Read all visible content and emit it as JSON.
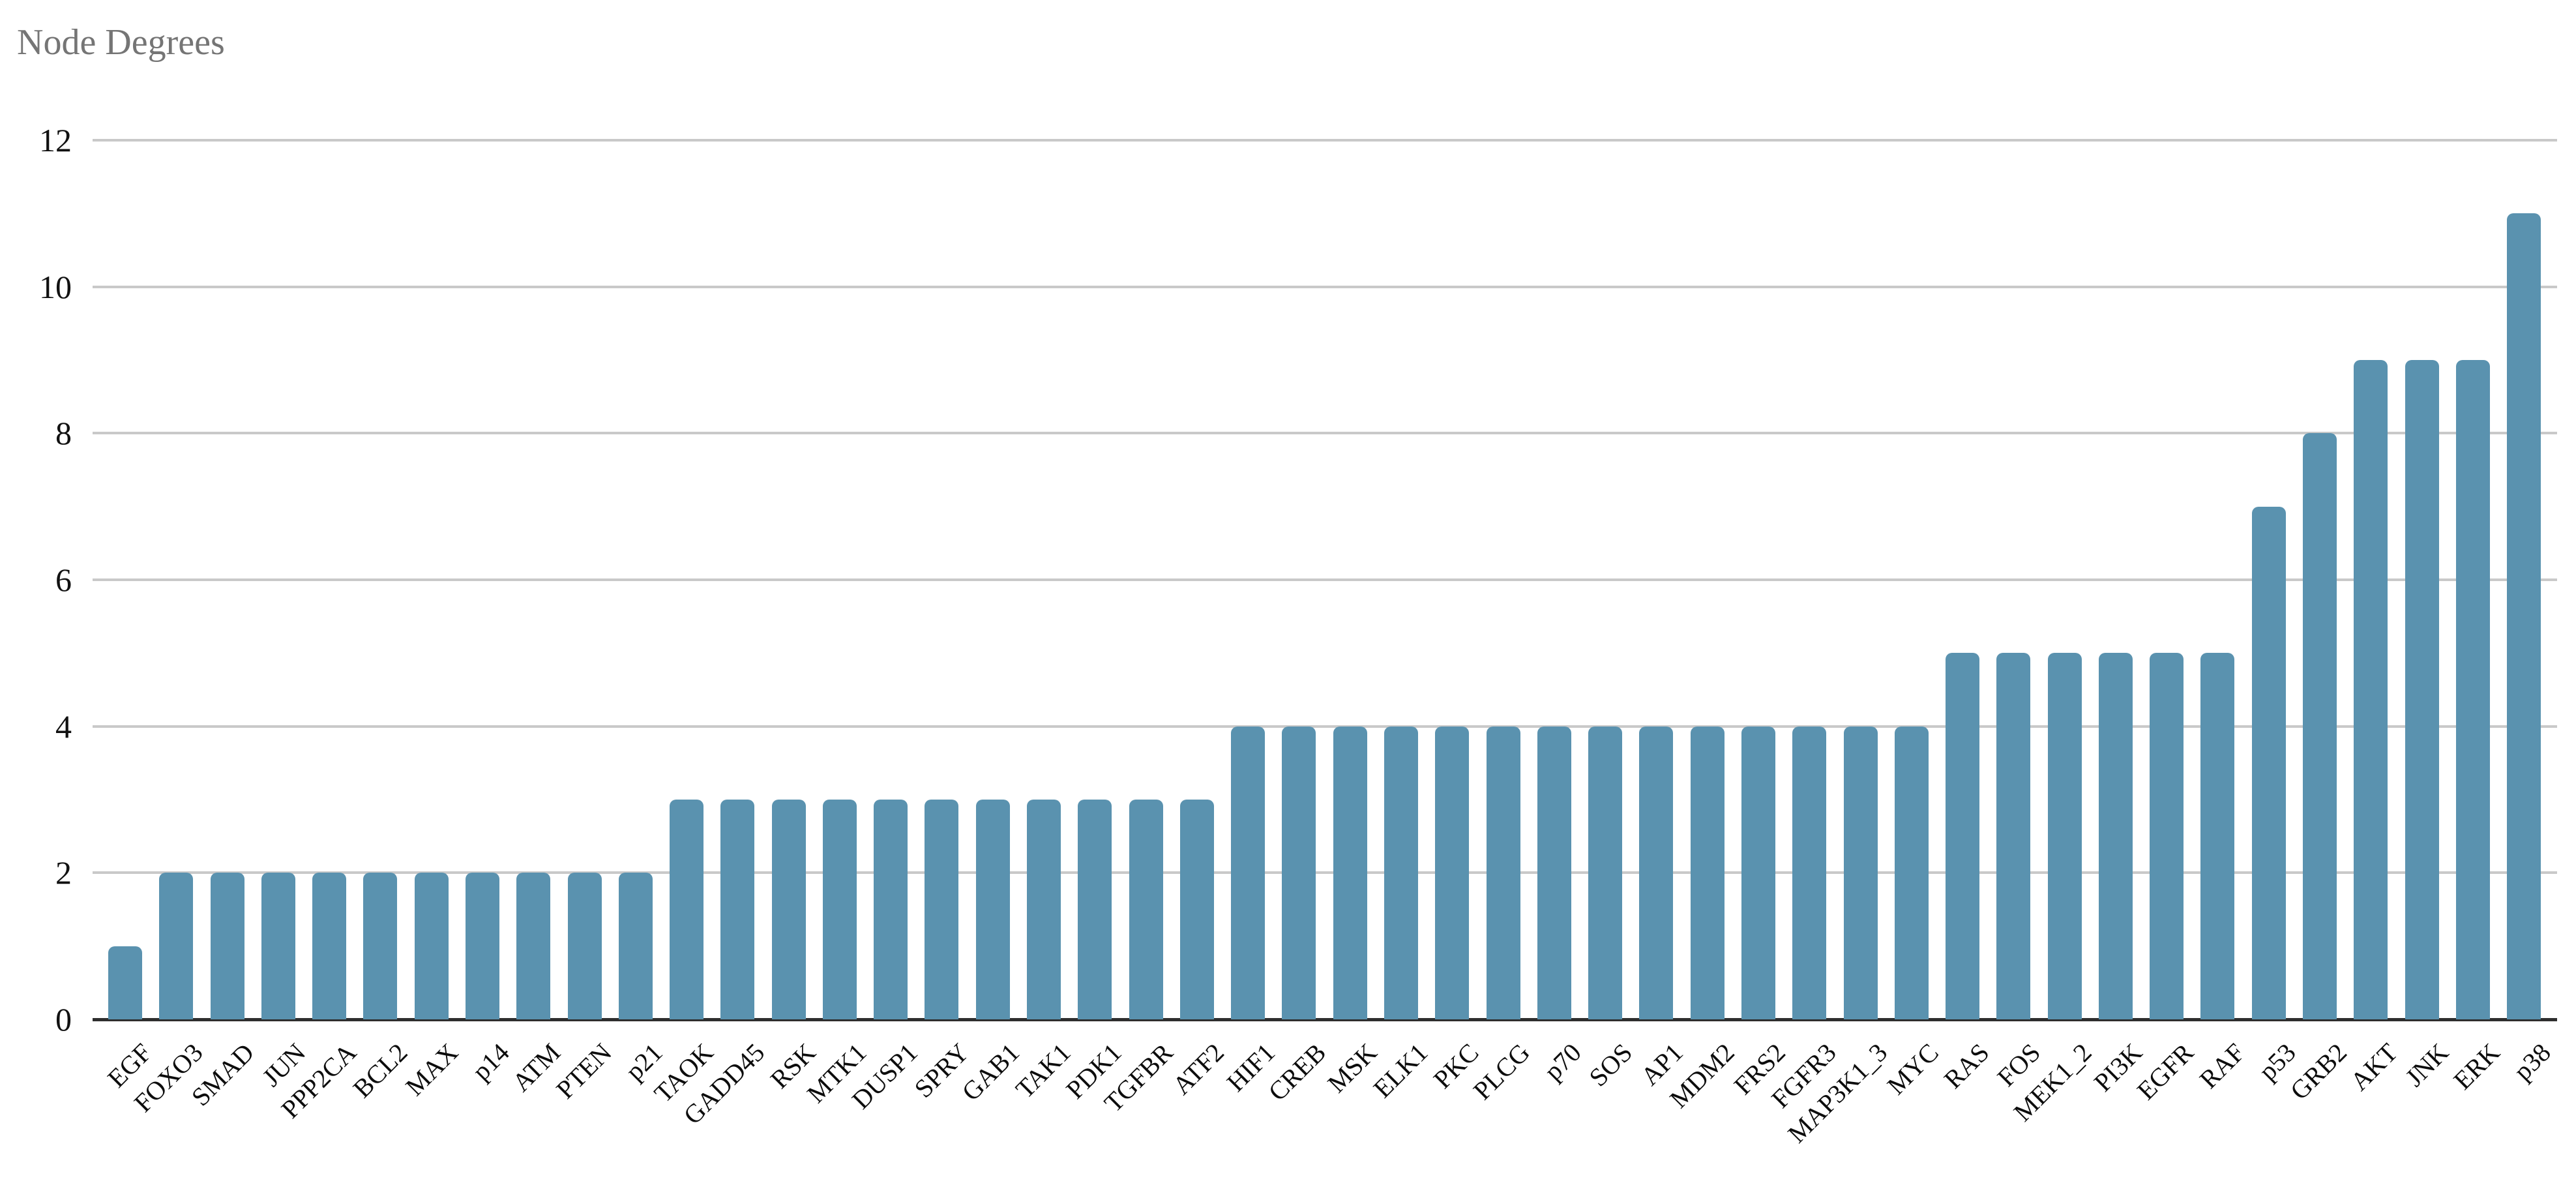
{
  "title": "Node Degrees",
  "colors": {
    "bar": "#5a92af",
    "gridline": "#c9c9c9",
    "axis_line": "#2e2e2e",
    "title_text": "#757575",
    "tick_text": "#111111",
    "x_label_text": "#0c0c0c",
    "background": "#ffffff"
  },
  "chart_data": {
    "type": "bar",
    "title": "Node Degrees",
    "categories": [
      "EGF",
      "FOXO3",
      "SMAD",
      "JUN",
      "PPP2CA",
      "BCL2",
      "MAX",
      "p14",
      "ATM",
      "PTEN",
      "p21",
      "TAOK",
      "GADD45",
      "RSK",
      "MTK1",
      "DUSP1",
      "SPRY",
      "GAB1",
      "TAK1",
      "PDK1",
      "TGFBR",
      "ATF2",
      "HIF1",
      "CREB",
      "MSK",
      "ELK1",
      "PKC",
      "PLCG",
      "p70",
      "SOS",
      "AP1",
      "MDM2",
      "FRS2",
      "FGFR3",
      "MAP3K1_3",
      "MYC",
      "RAS",
      "FOS",
      "MEK1_2",
      "PI3K",
      "EGFR",
      "RAF",
      "p53",
      "GRB2",
      "AKT",
      "JNK",
      "ERK",
      "p38"
    ],
    "values": [
      1,
      2,
      2,
      2,
      2,
      2,
      2,
      2,
      2,
      2,
      2,
      3,
      3,
      3,
      3,
      3,
      3,
      3,
      3,
      3,
      3,
      3,
      4,
      4,
      4,
      4,
      4,
      4,
      4,
      4,
      4,
      4,
      4,
      4,
      4,
      4,
      5,
      5,
      5,
      5,
      5,
      5,
      7,
      8,
      9,
      9,
      9,
      11
    ],
    "xlabel": "",
    "ylabel": "",
    "ylim": [
      0,
      12
    ],
    "yticks": [
      0,
      2,
      4,
      6,
      8,
      10,
      12
    ],
    "grid": true,
    "legend": "none",
    "bar_color": "#5a92af",
    "x_label_rotation_deg": -45
  }
}
